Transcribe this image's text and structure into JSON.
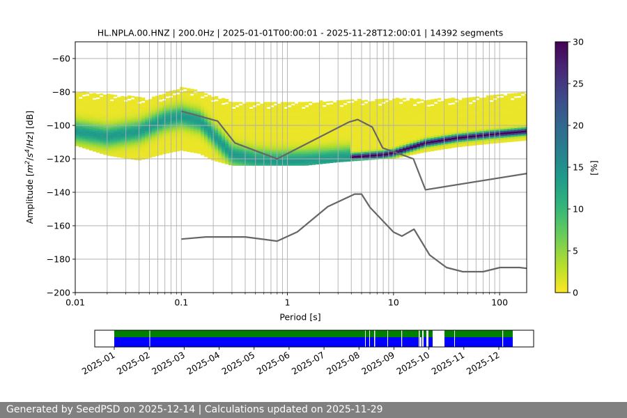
{
  "chart_data": {
    "type": "heatmap",
    "title": "HL.NPLA.00.HNZ | 200.0Hz | 2025-01-01T00:00:01 - 2025-11-28T12:00:01 | 14392 segments",
    "xlabel": "Period [s]",
    "ylabel_parts": [
      "Amplitude [",
      "m",
      "2",
      "/",
      "s",
      "4",
      "/",
      "Hz",
      "] [dB]"
    ],
    "xscale": "log",
    "xlim": [
      0.01,
      180
    ],
    "ylim": [
      -200,
      -50
    ],
    "x_ticks": [
      {
        "value": 0.01,
        "label": "0.01"
      },
      {
        "value": 0.1,
        "label": "0.1"
      },
      {
        "value": 1,
        "label": "1"
      },
      {
        "value": 10,
        "label": "10"
      },
      {
        "value": 100,
        "label": "100"
      }
    ],
    "y_ticks": [
      {
        "value": -60,
        "label": "−60"
      },
      {
        "value": -80,
        "label": "−80"
      },
      {
        "value": -100,
        "label": "−100"
      },
      {
        "value": -120,
        "label": "−120"
      },
      {
        "value": -140,
        "label": "−140"
      },
      {
        "value": -160,
        "label": "−160"
      },
      {
        "value": -180,
        "label": "−180"
      },
      {
        "value": -200,
        "label": "−200"
      }
    ],
    "grid": true,
    "colorbar": {
      "label": "[%]",
      "range": [
        0,
        30
      ],
      "ticks": [
        {
          "value": 0,
          "label": "0"
        },
        {
          "value": 5,
          "label": "5"
        },
        {
          "value": 10,
          "label": "10"
        },
        {
          "value": 15,
          "label": "15"
        },
        {
          "value": 20,
          "label": "20"
        },
        {
          "value": 25,
          "label": "25"
        },
        {
          "value": 30,
          "label": "30"
        }
      ],
      "colormap": "viridis_r"
    },
    "mode_curve": {
      "x": [
        0.01,
        0.02,
        0.04,
        0.07,
        0.1,
        0.15,
        0.2,
        0.3,
        0.5,
        0.8,
        1.5,
        3,
        5,
        8,
        10,
        14,
        20,
        40,
        80,
        180
      ],
      "y": [
        -104,
        -107,
        -104,
        -97,
        -95,
        -98,
        -106,
        -118,
        -121,
        -122,
        -121.5,
        -120,
        -119,
        -118,
        -117,
        -114,
        -111,
        -108,
        -106,
        -104
      ]
    },
    "band_upper": {
      "x": [
        0.01,
        0.02,
        0.05,
        0.08,
        0.1,
        0.15,
        0.2,
        0.3,
        0.5,
        1,
        2,
        5,
        10,
        20,
        50,
        100,
        180
      ],
      "y": [
        -80,
        -82,
        -84,
        -80,
        -78,
        -80,
        -83,
        -86,
        -87,
        -87,
        -86,
        -85,
        -84,
        -85,
        -84,
        -82,
        -80
      ]
    },
    "band_lower": {
      "x": [
        0.01,
        0.02,
        0.04,
        0.07,
        0.1,
        0.15,
        0.2,
        0.3,
        0.5,
        0.8,
        1.5,
        3,
        5,
        8,
        10,
        14,
        20,
        40,
        80,
        180
      ],
      "y": [
        -112,
        -118,
        -121,
        -117,
        -115,
        -117,
        -121,
        -124,
        -124,
        -124,
        -124,
        -122,
        -121,
        -120,
        -120,
        -118,
        -116,
        -113,
        -111,
        -109
      ]
    },
    "noise_models": [
      {
        "x": [
          0.1,
          0.17,
          0.4,
          0.8,
          1.24,
          2.4,
          4.3,
          5,
          6,
          10,
          12,
          15.6,
          21.9,
          31.6,
          45,
          70,
          101,
          154,
          180
        ],
        "y": [
          -168,
          -166.7,
          -166.7,
          -169.2,
          -163.7,
          -148.6,
          -141.1,
          -141.1,
          -149,
          -163.8,
          -166.2,
          -162.1,
          -177.5,
          -185,
          -187.5,
          -187.5,
          -185,
          -185,
          -185.5
        ]
      },
      {
        "x": [
          0.1,
          0.22,
          0.32,
          0.8,
          3.8,
          4.6,
          6.3,
          7.9,
          15.4,
          20,
          180
        ],
        "y": [
          -91.5,
          -97.4,
          -110.5,
          -120,
          -98,
          -96.5,
          -101,
          -113.5,
          -120,
          -138.5,
          -128.8
        ]
      }
    ],
    "availability": {
      "tick_labels": [
        "2025-01",
        "2025-02",
        "2025-03",
        "2025-04",
        "2025-05",
        "2025-06",
        "2025-07",
        "2025-08",
        "2025-09",
        "2025-10",
        "2025-11",
        "2025-12"
      ],
      "colors": {
        "upper": "#008000",
        "lower": "#0000ff"
      }
    }
  },
  "footer": {
    "text": "Generated by SeedPSD on 2025-12-14 | Calculations updated on 2025-11-29"
  }
}
